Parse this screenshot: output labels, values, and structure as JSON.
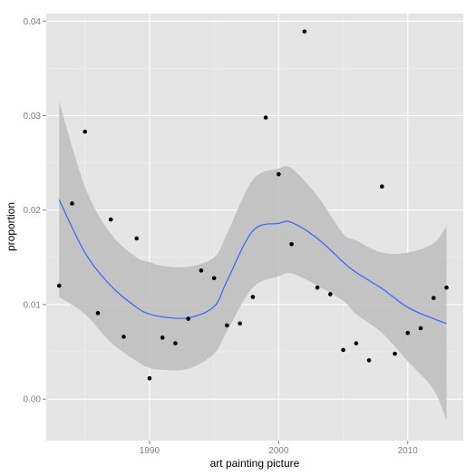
{
  "chart_data": {
    "type": "scatter",
    "title": "",
    "xlabel": "art painting picture",
    "ylabel": "proportion",
    "xlim": [
      1982.0,
      2014.3
    ],
    "ylim": [
      -0.0044,
      0.0408
    ],
    "x_ticks": [
      1990,
      2000,
      2010
    ],
    "x_tick_labels": [
      "1990",
      "2000",
      "2010"
    ],
    "y_ticks": [
      0.0,
      0.01,
      0.02,
      0.03,
      0.04
    ],
    "y_tick_labels": [
      "0.00",
      "0.01",
      "0.02",
      "0.03",
      "0.04"
    ],
    "grid": true,
    "legend": "none",
    "points": [
      {
        "x": 1983,
        "y": 0.012
      },
      {
        "x": 1984,
        "y": 0.0207
      },
      {
        "x": 1985,
        "y": 0.0283
      },
      {
        "x": 1986,
        "y": 0.0091
      },
      {
        "x": 1987,
        "y": 0.019
      },
      {
        "x": 1988,
        "y": 0.0066
      },
      {
        "x": 1989,
        "y": 0.017
      },
      {
        "x": 1990,
        "y": 0.0022
      },
      {
        "x": 1991,
        "y": 0.0065
      },
      {
        "x": 1992,
        "y": 0.0059
      },
      {
        "x": 1993,
        "y": 0.0085
      },
      {
        "x": 1994,
        "y": 0.0136
      },
      {
        "x": 1995,
        "y": 0.0128
      },
      {
        "x": 1996,
        "y": 0.0078
      },
      {
        "x": 1997,
        "y": 0.008
      },
      {
        "x": 1998,
        "y": 0.0108
      },
      {
        "x": 1999,
        "y": 0.0298
      },
      {
        "x": 2000,
        "y": 0.0238
      },
      {
        "x": 2001,
        "y": 0.0164
      },
      {
        "x": 2002,
        "y": 0.0389
      },
      {
        "x": 2003,
        "y": 0.0118
      },
      {
        "x": 2004,
        "y": 0.0111
      },
      {
        "x": 2005,
        "y": 0.0052
      },
      {
        "x": 2006,
        "y": 0.0059
      },
      {
        "x": 2007,
        "y": 0.0041
      },
      {
        "x": 2008,
        "y": 0.0225
      },
      {
        "x": 2009,
        "y": 0.0048
      },
      {
        "x": 2010,
        "y": 0.007
      },
      {
        "x": 2011,
        "y": 0.0075
      },
      {
        "x": 2012,
        "y": 0.0107
      },
      {
        "x": 2013,
        "y": 0.0118
      }
    ],
    "smooth": {
      "x": [
        1983,
        1985,
        1987,
        1989,
        1990,
        1991,
        1993,
        1995,
        1996,
        1998,
        2000,
        2001,
        2003,
        2005,
        2006,
        2008,
        2010,
        2012,
        2013
      ],
      "y": [
        0.0211,
        0.0155,
        0.012,
        0.0097,
        0.009,
        0.0087,
        0.0086,
        0.0098,
        0.0125,
        0.0178,
        0.0186,
        0.0187,
        0.017,
        0.0145,
        0.0134,
        0.0117,
        0.0097,
        0.0085,
        0.008
      ],
      "upper": [
        0.0315,
        0.0225,
        0.0175,
        0.015,
        0.0145,
        0.0141,
        0.014,
        0.015,
        0.0175,
        0.0232,
        0.0244,
        0.0244,
        0.0215,
        0.0175,
        0.0168,
        0.0155,
        0.0155,
        0.0165,
        0.0183
      ],
      "lower": [
        0.0108,
        0.009,
        0.006,
        0.004,
        0.0033,
        0.0031,
        0.0032,
        0.0048,
        0.0072,
        0.0118,
        0.013,
        0.0133,
        0.012,
        0.0104,
        0.009,
        0.007,
        0.004,
        0.001,
        -0.0023
      ]
    },
    "colors": {
      "panel": "#e5e5e5",
      "grid_major": "#ffffff",
      "grid_minor": "#f2f2f2",
      "band": "#bdbdbd",
      "line": "#3366ff",
      "point": "#000000"
    }
  }
}
